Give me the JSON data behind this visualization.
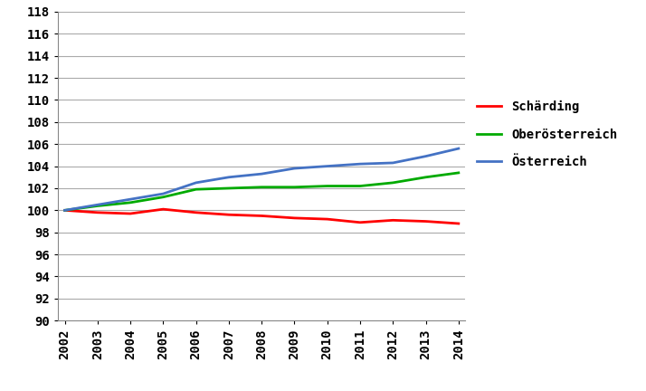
{
  "years": [
    2002,
    2003,
    2004,
    2005,
    2006,
    2007,
    2008,
    2009,
    2010,
    2011,
    2012,
    2013,
    2014
  ],
  "schaerding": [
    100.0,
    99.8,
    99.7,
    100.1,
    99.8,
    99.6,
    99.5,
    99.3,
    99.2,
    98.9,
    99.1,
    99.0,
    98.8
  ],
  "oberoesterreich": [
    100.0,
    100.4,
    100.7,
    101.2,
    101.9,
    102.0,
    102.1,
    102.1,
    102.2,
    102.2,
    102.5,
    103.0,
    103.4
  ],
  "oesterreich": [
    100.0,
    100.5,
    101.0,
    101.5,
    102.5,
    103.0,
    103.3,
    103.8,
    104.0,
    104.2,
    104.3,
    104.9,
    105.6
  ],
  "line_colors": {
    "schaerding": "#ff0000",
    "oberoesterreich": "#00aa00",
    "oesterreich": "#4472c4"
  },
  "legend_labels": {
    "schaerding": "Schärding",
    "oberoesterreich": "Oberösterreich",
    "oesterreich": "Österreich"
  },
  "ylim": [
    90,
    118
  ],
  "yticks": [
    90,
    92,
    94,
    96,
    98,
    100,
    102,
    104,
    106,
    108,
    110,
    112,
    114,
    116,
    118
  ],
  "grid_color": "#aaaaaa",
  "line_width": 2.0,
  "background_color": "#ffffff",
  "axes_background": "#ffffff",
  "tick_fontsize": 10,
  "legend_fontsize": 10
}
